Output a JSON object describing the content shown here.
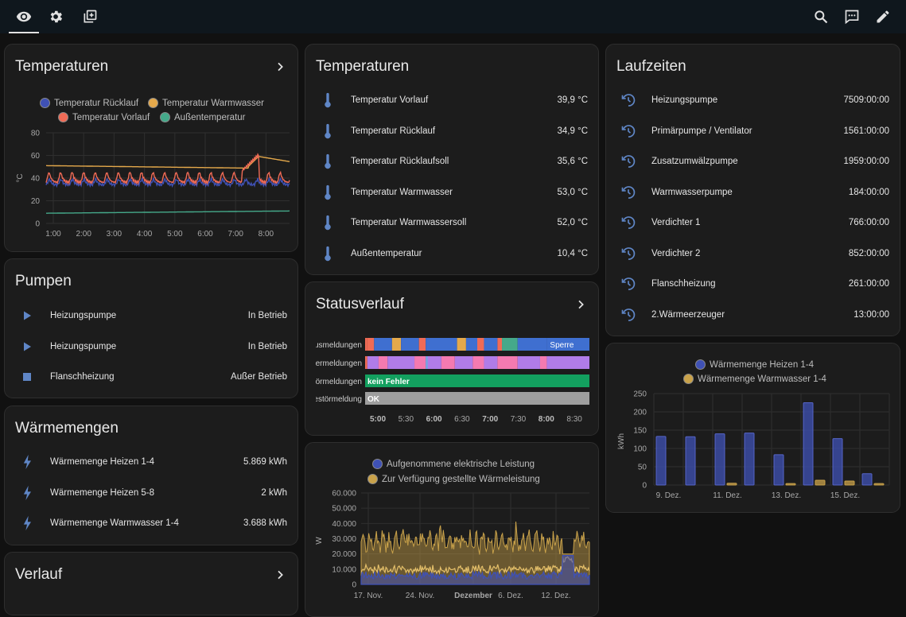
{
  "cards": {
    "temp_chart": {
      "title": "Temperaturen",
      "legend": [
        "Temperatur Rücklauf",
        "Temperatur Warmwasser",
        "Temperatur Vorlauf",
        "Außentemperatur"
      ]
    },
    "temp_list": {
      "title": "Temperaturen",
      "items": [
        {
          "name": "Temperatur Vorlauf",
          "value": "39,9 °C"
        },
        {
          "name": "Temperatur Rücklauf",
          "value": "34,9 °C"
        },
        {
          "name": "Temperatur Rücklaufsoll",
          "value": "35,6 °C"
        },
        {
          "name": "Temperatur Warmwasser",
          "value": "53,0 °C"
        },
        {
          "name": "Temperatur Warmwassersoll",
          "value": "52,0 °C"
        },
        {
          "name": "Außentemperatur",
          "value": "10,4 °C"
        }
      ]
    },
    "laufzeiten": {
      "title": "Laufzeiten",
      "items": [
        {
          "name": "Heizungspumpe",
          "value": "7509:00:00"
        },
        {
          "name": "Primärpumpe / Ventilator",
          "value": "1561:00:00"
        },
        {
          "name": "Zusatzumwälzpumpe",
          "value": "1959:00:00"
        },
        {
          "name": "Warmwasserpumpe",
          "value": "184:00:00"
        },
        {
          "name": "Verdichter 1",
          "value": "766:00:00"
        },
        {
          "name": "Verdichter 2",
          "value": "852:00:00"
        },
        {
          "name": "Flanschheizung",
          "value": "261:00:00"
        },
        {
          "name": "2.Wärmeerzeuger",
          "value": "13:00:00"
        }
      ]
    },
    "pumpen": {
      "title": "Pumpen",
      "items": [
        {
          "name": "Heizungspumpe",
          "value": "In Betrieb",
          "icon": "play-icon"
        },
        {
          "name": "Heizungspumpe",
          "value": "In Betrieb",
          "icon": "play-icon"
        },
        {
          "name": "Flanschheizung",
          "value": "Außer Betrieb",
          "icon": "stop-icon"
        }
      ]
    },
    "status": {
      "title": "Statusverlauf",
      "rows": [
        "Statusmeldungen",
        "Fehlermeldungen",
        "Störmeldungen",
        "Kältestörmeldung"
      ],
      "labels": {
        "sperre": "Sperre",
        "kein_fehler": "kein Fehler",
        "ok": "OK"
      },
      "xticks": [
        "5:00",
        "5:30",
        "6:00",
        "6:30",
        "7:00",
        "7:30",
        "8:00",
        "8:30"
      ]
    },
    "waermemengen": {
      "title": "Wärmemengen",
      "items": [
        {
          "name": "Wärmemenge Heizen 1-4",
          "value": "5.869 kWh"
        },
        {
          "name": "Wärmemenge Heizen 5-8",
          "value": "2 kWh"
        },
        {
          "name": "Wärmemenge Warmwasser 1-4",
          "value": "3.688 kWh"
        }
      ]
    },
    "verlauf": {
      "title": "Verlauf"
    },
    "leistung": {
      "legend": [
        "Aufgenommene elektrische Leistung",
        "Zur Verfügung gestellte Wärmeleistung"
      ]
    },
    "waerme_bar": {
      "legend": [
        "Wärmemenge Heizen 1-4",
        "Wärmemenge Warmwasser 1-4"
      ]
    }
  },
  "chart_data": [
    {
      "type": "line",
      "ylabel": "°C",
      "ylim": [
        0,
        80
      ],
      "yticks": [
        "0",
        "20",
        "40",
        "60",
        "80"
      ],
      "xticks": [
        "1:00",
        "2:00",
        "3:00",
        "4:00",
        "5:00",
        "6:00",
        "7:00",
        "8:00"
      ],
      "series": [
        {
          "name": "Temperatur Rücklauf",
          "color": "#3f51b5",
          "approx_level": 35
        },
        {
          "name": "Temperatur Warmwasser",
          "color": "#e5a94b",
          "approx_level": 50
        },
        {
          "name": "Temperatur Vorlauf",
          "color": "#f06b56",
          "approx_level": 38
        },
        {
          "name": "Außentemperatur",
          "color": "#45a98a",
          "approx_level": 9
        }
      ]
    },
    {
      "type": "area",
      "ylabel": "W",
      "ylim": [
        0,
        60000
      ],
      "yticks": [
        "0",
        "10.000",
        "20.000",
        "30.000",
        "40.000",
        "50.000",
        "60.000"
      ],
      "xticks": [
        "17. Nov.",
        "24. Nov.",
        "Dezember",
        "6. Dez.",
        "12. Dez."
      ],
      "series": [
        {
          "name": "Aufgenommene elektrische Leistung",
          "color": "#3f51b5"
        },
        {
          "name": "Zur Verfügung gestellte Wärmeleistung",
          "color": "#c9a24a"
        }
      ]
    },
    {
      "type": "bar",
      "ylabel": "kWh",
      "ylim": [
        0,
        250
      ],
      "yticks": [
        "0",
        "50",
        "100",
        "150",
        "200",
        "250"
      ],
      "xticks": [
        "9. Dez.",
        "11. Dez.",
        "13. Dez.",
        "15. Dez."
      ],
      "series": [
        {
          "name": "Wärmemenge Heizen 1-4",
          "color": "#3f51b5",
          "values": [
            133,
            132,
            140,
            142,
            83,
            225,
            127,
            31
          ]
        },
        {
          "name": "Wärmemenge Warmwasser 1-4",
          "color": "#c9a24a",
          "values": [
            0,
            0,
            5,
            0,
            4,
            13,
            11,
            4
          ]
        }
      ]
    }
  ]
}
